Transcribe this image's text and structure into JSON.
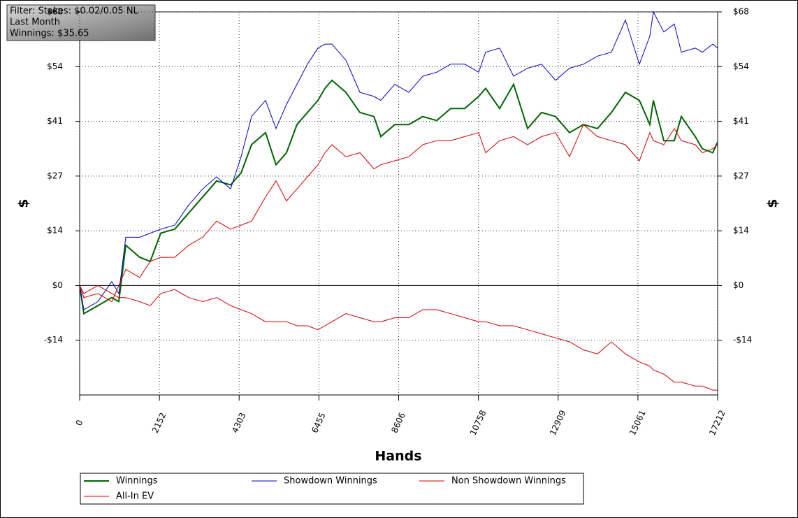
{
  "chart_data": {
    "type": "line",
    "annotations": [
      "Filter: Stakes: $0.02/0.05 NL",
      "Last Month",
      "Winnings: $35.65"
    ],
    "xlabel": "Hands",
    "ylabel": "$",
    "y2label": "$",
    "xlim": [
      0,
      17212
    ],
    "xticks": [
      0,
      2152,
      4303,
      6455,
      8606,
      10758,
      12909,
      15061,
      17212
    ],
    "ylim": [
      -27.2,
      68
    ],
    "yticks": [
      {
        "value": -13.6,
        "label": "-$14"
      },
      {
        "value": 0,
        "label": "$0"
      },
      {
        "value": 13.6,
        "label": "$14"
      },
      {
        "value": 27.2,
        "label": "$27"
      },
      {
        "value": 40.8,
        "label": "$41"
      },
      {
        "value": 54.4,
        "label": "$54"
      },
      {
        "value": 68,
        "label": "$68"
      }
    ],
    "grid": true,
    "legend": "bottom",
    "x": [
      0,
      113,
      490,
      867,
      1056,
      1244,
      1621,
      1904,
      2187,
      2564,
      2941,
      3318,
      3695,
      4072,
      4355,
      4638,
      5015,
      5298,
      5580,
      5863,
      6146,
      6429,
      6618,
      6806,
      7183,
      7561,
      7938,
      8126,
      8503,
      8880,
      9257,
      9634,
      10011,
      10388,
      10765,
      10953,
      11330,
      11707,
      12084,
      12461,
      12838,
      13215,
      13592,
      13969,
      14346,
      14723,
      15100,
      15383,
      15477,
      15760,
      16043,
      16231,
      16608,
      16797,
      17080,
      17212
    ],
    "series": [
      {
        "name": "Winnings",
        "color": "#006400",
        "width": 2,
        "values": [
          0,
          -7,
          -5,
          -3,
          -4,
          10,
          7,
          6,
          13,
          14,
          18,
          22,
          26,
          25,
          28,
          35,
          38,
          30,
          33,
          40,
          43,
          46,
          49,
          51,
          48,
          43,
          42,
          37,
          40,
          40,
          42,
          41,
          44,
          44,
          47,
          49,
          44,
          50,
          39,
          43,
          42,
          38,
          40,
          39,
          43,
          48,
          46,
          40,
          46,
          36,
          36,
          42,
          37,
          34,
          33,
          35.65
        ]
      },
      {
        "name": "Showdown Winnings",
        "color": "#0000c0",
        "width": 1,
        "values": [
          0,
          -6,
          -4,
          1,
          -2,
          12,
          12,
          13,
          14,
          15,
          20,
          24,
          27,
          24,
          32,
          42,
          46,
          39,
          45,
          50,
          55,
          59,
          60,
          60,
          56,
          48,
          47,
          46,
          50,
          48,
          52,
          53,
          55,
          55,
          53,
          58,
          59,
          52,
          54,
          55,
          51,
          54,
          55,
          57,
          58,
          66,
          55,
          62,
          68,
          63,
          65,
          58,
          59,
          58,
          60,
          59
        ]
      },
      {
        "name": "Non Showdown Winnings",
        "color": "#d00000",
        "width": 1,
        "values": [
          0,
          -2,
          0,
          -2,
          -3,
          -3,
          -4,
          -5,
          -2,
          -1,
          -3,
          -4,
          -3,
          -5,
          -6,
          -7,
          -9,
          -9,
          -9,
          -10,
          -10,
          -11,
          -10,
          -9,
          -7,
          -8,
          -9,
          -9,
          -8,
          -8,
          -6,
          -6,
          -7,
          -8,
          -9,
          -9,
          -10,
          -10,
          -11,
          -12,
          -13,
          -14,
          -16,
          -17,
          -14,
          -17,
          -19,
          -20,
          -21,
          -22,
          -24,
          -24,
          -25,
          -25,
          -26,
          -26
        ]
      },
      {
        "name": "All-In EV",
        "color": "#d00000",
        "width": 1,
        "values": [
          0,
          -3,
          -2,
          -4,
          0,
          4,
          2,
          6,
          7,
          7,
          10,
          12,
          16,
          14,
          15,
          16,
          22,
          26,
          21,
          24,
          27,
          30,
          33,
          35,
          32,
          33,
          29,
          30,
          31,
          32,
          35,
          36,
          36,
          37,
          38,
          33,
          36,
          37,
          35,
          37,
          38,
          32,
          40,
          37,
          36,
          35,
          31,
          38,
          36,
          35,
          39,
          36,
          35,
          33,
          34,
          35
        ]
      }
    ]
  }
}
